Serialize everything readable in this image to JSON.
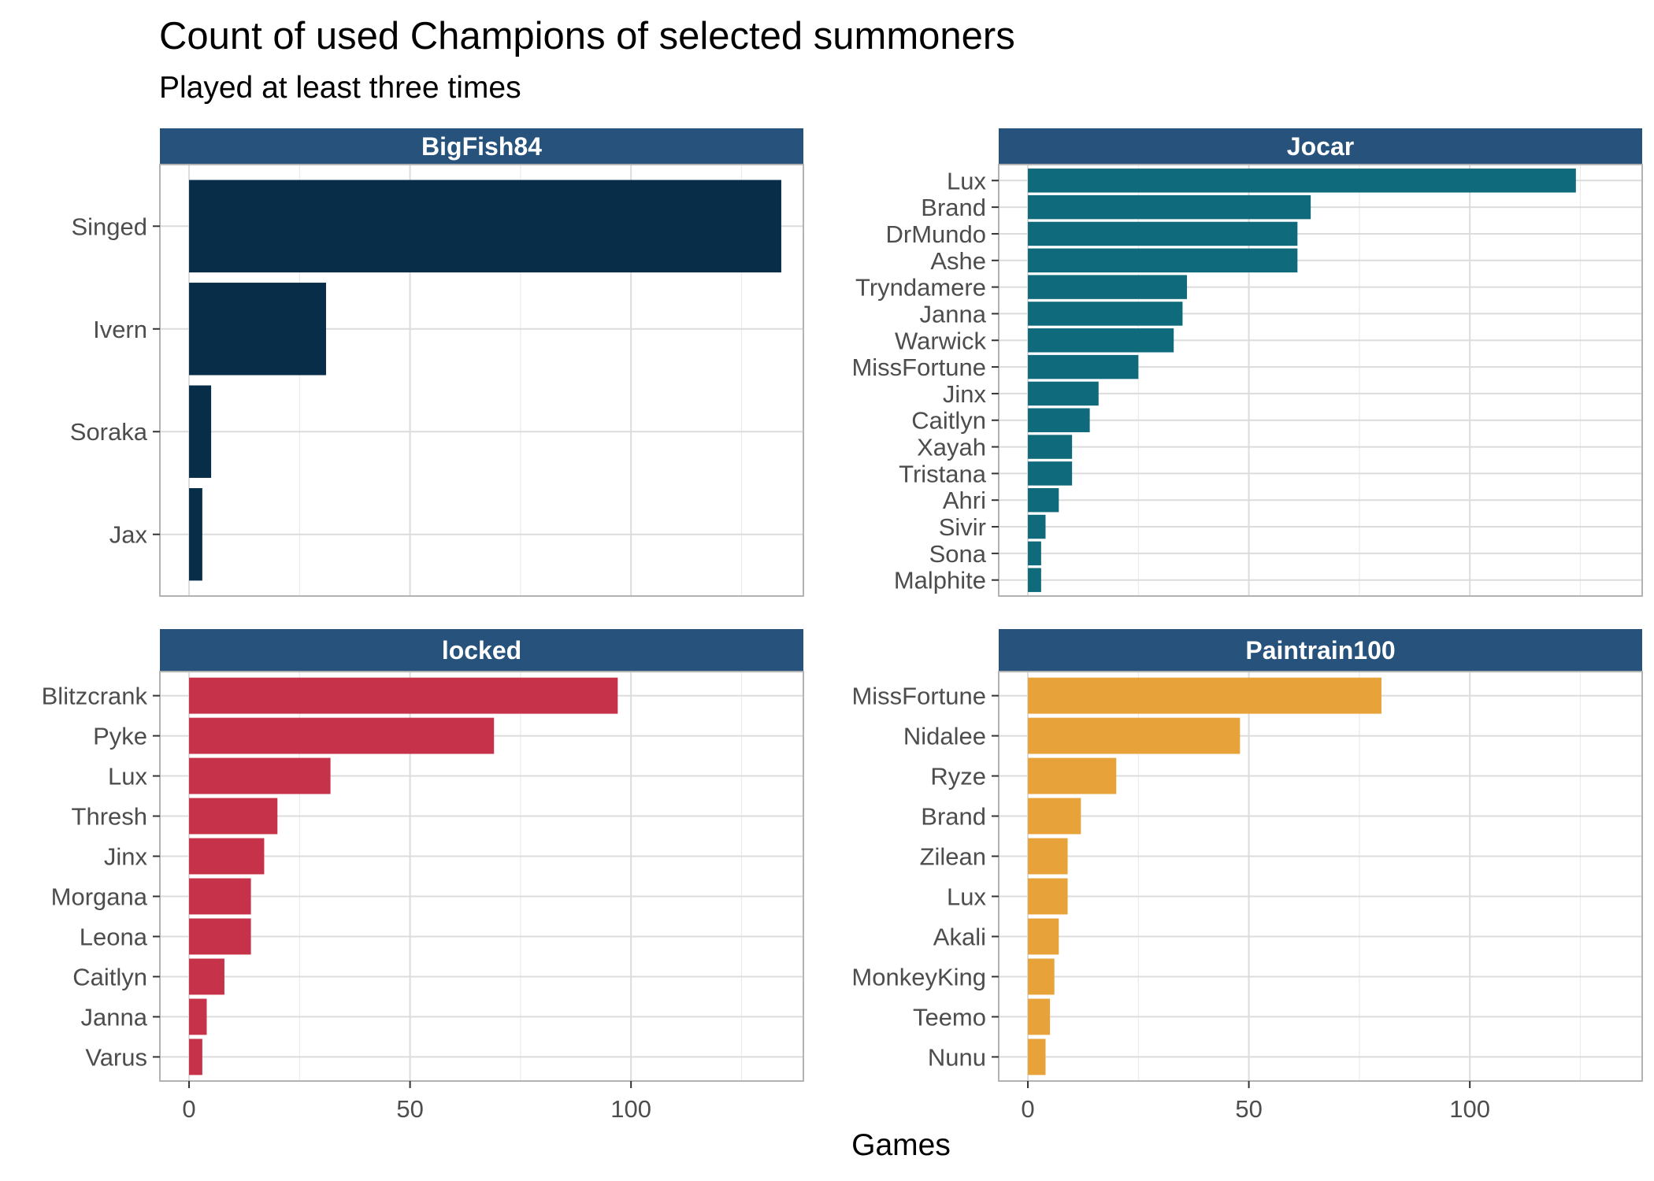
{
  "title": "Count of used Champions of selected summoners",
  "subtitle": "Played at least three times",
  "xlabel": "Games",
  "chart_data": {
    "type": "bar",
    "orientation": "horizontal",
    "title": "Count of used Champions of selected summoners",
    "subtitle": "Played at least three times",
    "xlabel": "Games",
    "ylabel": "",
    "xlim": [
      -6.6,
      139
    ],
    "xticks": [
      0,
      50,
      100
    ],
    "grid": true,
    "panel_header_color": "#26527C",
    "facets": [
      {
        "name": "BigFish84",
        "color": "#082D49",
        "categories": [
          "Singed",
          "Ivern",
          "Soraka",
          "Jax"
        ],
        "values": [
          134,
          31,
          5,
          3
        ]
      },
      {
        "name": "Jocar",
        "color": "#0F6A7B",
        "categories": [
          "Lux",
          "Brand",
          "DrMundo",
          "Ashe",
          "Tryndamere",
          "Janna",
          "Warwick",
          "MissFortune",
          "Jinx",
          "Caitlyn",
          "Xayah",
          "Tristana",
          "Ahri",
          "Sivir",
          "Sona",
          "Malphite"
        ],
        "values": [
          124,
          64,
          61,
          61,
          36,
          35,
          33,
          25,
          16,
          14,
          10,
          10,
          7,
          4,
          3,
          3
        ]
      },
      {
        "name": "locked",
        "color": "#C6324A",
        "categories": [
          "Blitzcrank",
          "Pyke",
          "Lux",
          "Thresh",
          "Jinx",
          "Morgana",
          "Leona",
          "Caitlyn",
          "Janna",
          "Varus"
        ],
        "values": [
          97,
          69,
          32,
          20,
          17,
          14,
          14,
          8,
          4,
          3
        ]
      },
      {
        "name": "Paintrain100",
        "color": "#E7A33A",
        "categories": [
          "MissFortune",
          "Nidalee",
          "Ryze",
          "Brand",
          "Zilean",
          "Lux",
          "Akali",
          "MonkeyKing",
          "Teemo",
          "Nunu"
        ],
        "values": [
          80,
          48,
          20,
          12,
          9,
          9,
          7,
          6,
          5,
          4
        ]
      }
    ]
  }
}
